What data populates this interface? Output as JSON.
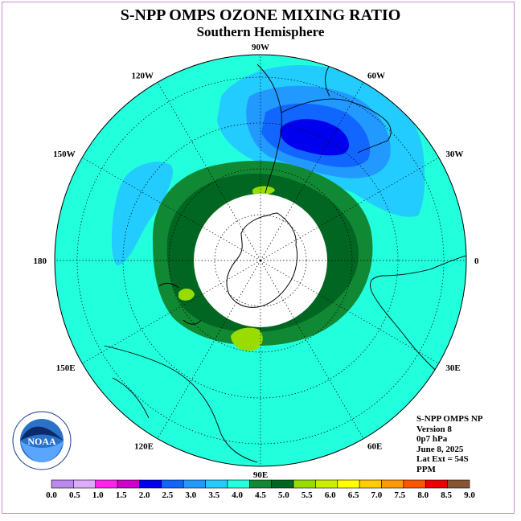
{
  "title": "S-NPP OMPS OZONE MIXING RATIO",
  "subtitle": "Southern Hemisphere",
  "longitude_labels": [
    {
      "label": "90W",
      "lon": -90
    },
    {
      "label": "60W",
      "lon": -60
    },
    {
      "label": "30W",
      "lon": -30
    },
    {
      "label": "0",
      "lon": 0
    },
    {
      "label": "30E",
      "lon": 30
    },
    {
      "label": "60E",
      "lon": 60
    },
    {
      "label": "90E",
      "lon": 90
    },
    {
      "label": "120E",
      "lon": 120
    },
    {
      "label": "150E",
      "lon": 150
    },
    {
      "label": "180",
      "lon": 180
    },
    {
      "label": "150W",
      "lon": -150
    },
    {
      "label": "120W",
      "lon": -120
    }
  ],
  "info": {
    "instrument": "S-NPP OMPS NP",
    "version": "Version 8",
    "pressure_level": "0p7 hPa",
    "date": "June 8, 2025",
    "lat_extent": "Lat Ext = 54S",
    "units": "PPM"
  },
  "legend": {
    "labels": [
      "0.0",
      "0.5",
      "1.0",
      "1.5",
      "2.0",
      "2.5",
      "3.0",
      "3.5",
      "4.0",
      "4.5",
      "5.0",
      "5.5",
      "6.0",
      "6.5",
      "7.0",
      "7.5",
      "8.0",
      "8.5",
      "9.0"
    ],
    "colors": [
      "#bb88ee",
      "#ddaaff",
      "#ff22ee",
      "#cc00cc",
      "#0000ee",
      "#1166ff",
      "#2299ff",
      "#22ccff",
      "#22ffdd",
      "#118833",
      "#006622",
      "#99dd00",
      "#ccee00",
      "#ffff00",
      "#ffcc00",
      "#ff9900",
      "#ff5500",
      "#ee0000",
      "#885533"
    ]
  },
  "logo_text": "NOAA",
  "colors": {
    "background_field": "#22ffdd",
    "dark_green": "#006622",
    "mid_green": "#118833",
    "light_blue": "#22ccff",
    "mid_blue": "#2299ff",
    "blue": "#1166ff",
    "deep_blue": "#0000ee",
    "yellow_green": "#99dd00",
    "polar_night": "#ffffff"
  }
}
